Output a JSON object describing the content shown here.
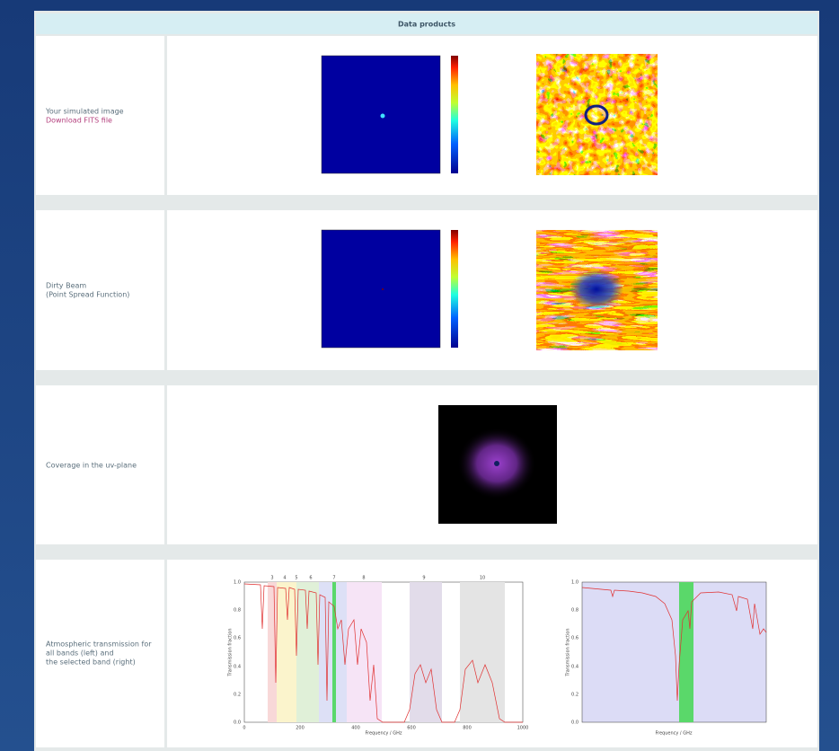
{
  "header": {
    "title": "Data products"
  },
  "rows": [
    {
      "lines": [
        "Your simulated image"
      ],
      "link": "Download FITS file"
    },
    {
      "lines": [
        "Dirty Beam",
        "(Point Spread Function)"
      ]
    },
    {
      "lines": [
        "Coverage in the uv-plane"
      ]
    },
    {
      "lines": [
        "Atmospheric transmission for",
        "all bands (left) and",
        "the selected band (right)"
      ]
    }
  ],
  "atmosphere": {
    "bands": [
      "3",
      "4",
      "5",
      "6",
      "7",
      "8",
      "9",
      "10"
    ],
    "xlabel": "Frequency / GHz",
    "ylabel": "Transmission fraction",
    "left_xticks": [
      "0",
      "200",
      "400",
      "600",
      "800",
      "1000"
    ],
    "yticks": [
      "0.0",
      "0.2",
      "0.4",
      "0.6",
      "0.8",
      "1.0"
    ]
  }
}
